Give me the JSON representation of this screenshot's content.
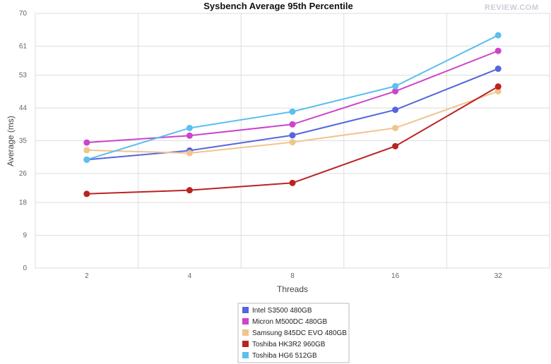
{
  "chart_data": {
    "type": "line",
    "title": "Sysbench Average 95th Percentile",
    "xlabel": "Threads",
    "ylabel": "Average (ms)",
    "x": [
      "2",
      "4",
      "8",
      "16",
      "32"
    ],
    "ylim": [
      0,
      70
    ],
    "yticks": [
      0,
      9,
      18,
      26,
      35,
      44,
      53,
      61,
      70
    ],
    "grid": true,
    "legend_position": "bottom-center",
    "series": [
      {
        "name": "Intel S3500 480GB",
        "color": "#5566dd",
        "values": [
          29.8,
          32.3,
          36.5,
          43.5,
          54.8
        ]
      },
      {
        "name": "Micron M500DC 480GB",
        "color": "#cc44cc",
        "values": [
          34.5,
          36.4,
          39.5,
          48.6,
          59.7
        ]
      },
      {
        "name": "Samsung 845DC EVO 480GB",
        "color": "#f0c48a",
        "values": [
          32.4,
          31.6,
          34.6,
          38.5,
          48.6
        ]
      },
      {
        "name": "Toshiba HK3R2 960GB",
        "color": "#bb2222",
        "values": [
          20.4,
          21.4,
          23.4,
          33.5,
          49.9
        ]
      },
      {
        "name": "Toshiba HG6 512GB",
        "color": "#5bbfef",
        "values": [
          29.8,
          38.5,
          43.0,
          50.0,
          64.0
        ]
      }
    ]
  },
  "logo_text": "REVIEW.COM"
}
